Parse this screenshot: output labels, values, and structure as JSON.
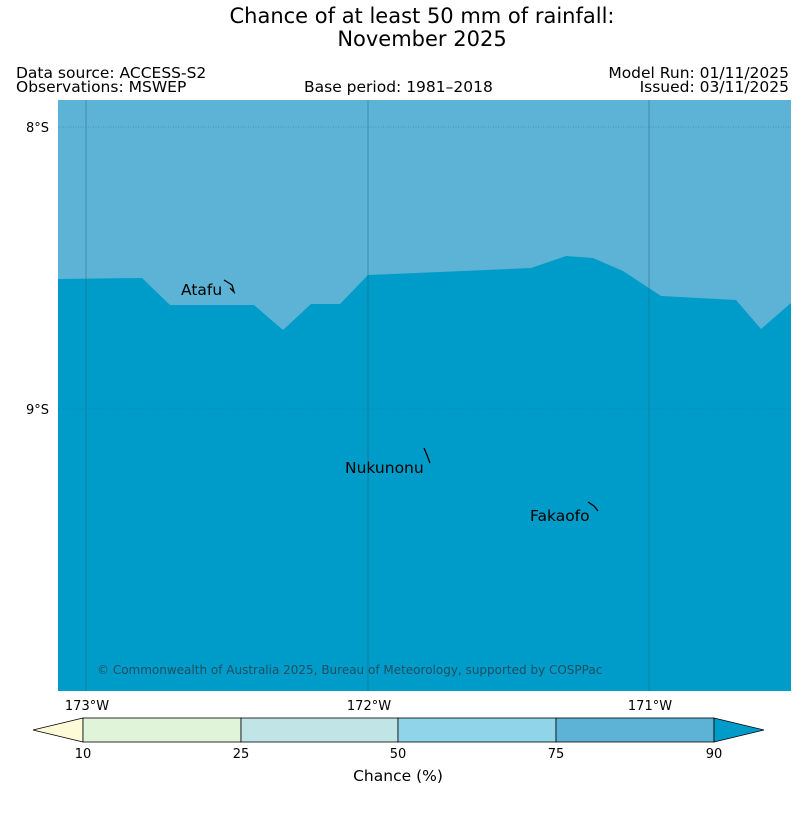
{
  "title": {
    "line1": "Chance of at least 50 mm of rainfall:",
    "line2": "November 2025"
  },
  "meta": {
    "data_source": "Data source: ACCESS-S2",
    "observations": "Observations: MSWEP",
    "base_period": "Base period: 1981–2018",
    "model_run": "Model Run: 01/11/2025",
    "issued": "Issued: 03/11/2025"
  },
  "map": {
    "lat_labels": [
      "8°S",
      "9°S"
    ],
    "lon_labels": [
      "173°W",
      "172°W",
      "171°W"
    ],
    "places": [
      "Atafu",
      "Nukunonu",
      "Fakaofo"
    ],
    "copyright": "© Commonwealth of Australia 2025, Bureau of Meteorology, supported by COSPPac",
    "colors": {
      "band_75_90": "#5db3d5",
      "band_90_plus": "#009cc9"
    }
  },
  "colorbar": {
    "ticks": [
      "10",
      "25",
      "50",
      "75",
      "90"
    ],
    "label": "Chance (%)",
    "colors": [
      "#fdfad8",
      "#dff4d9",
      "#c1e4e6",
      "#90d4ea",
      "#5db3d5",
      "#009cc9"
    ]
  }
}
